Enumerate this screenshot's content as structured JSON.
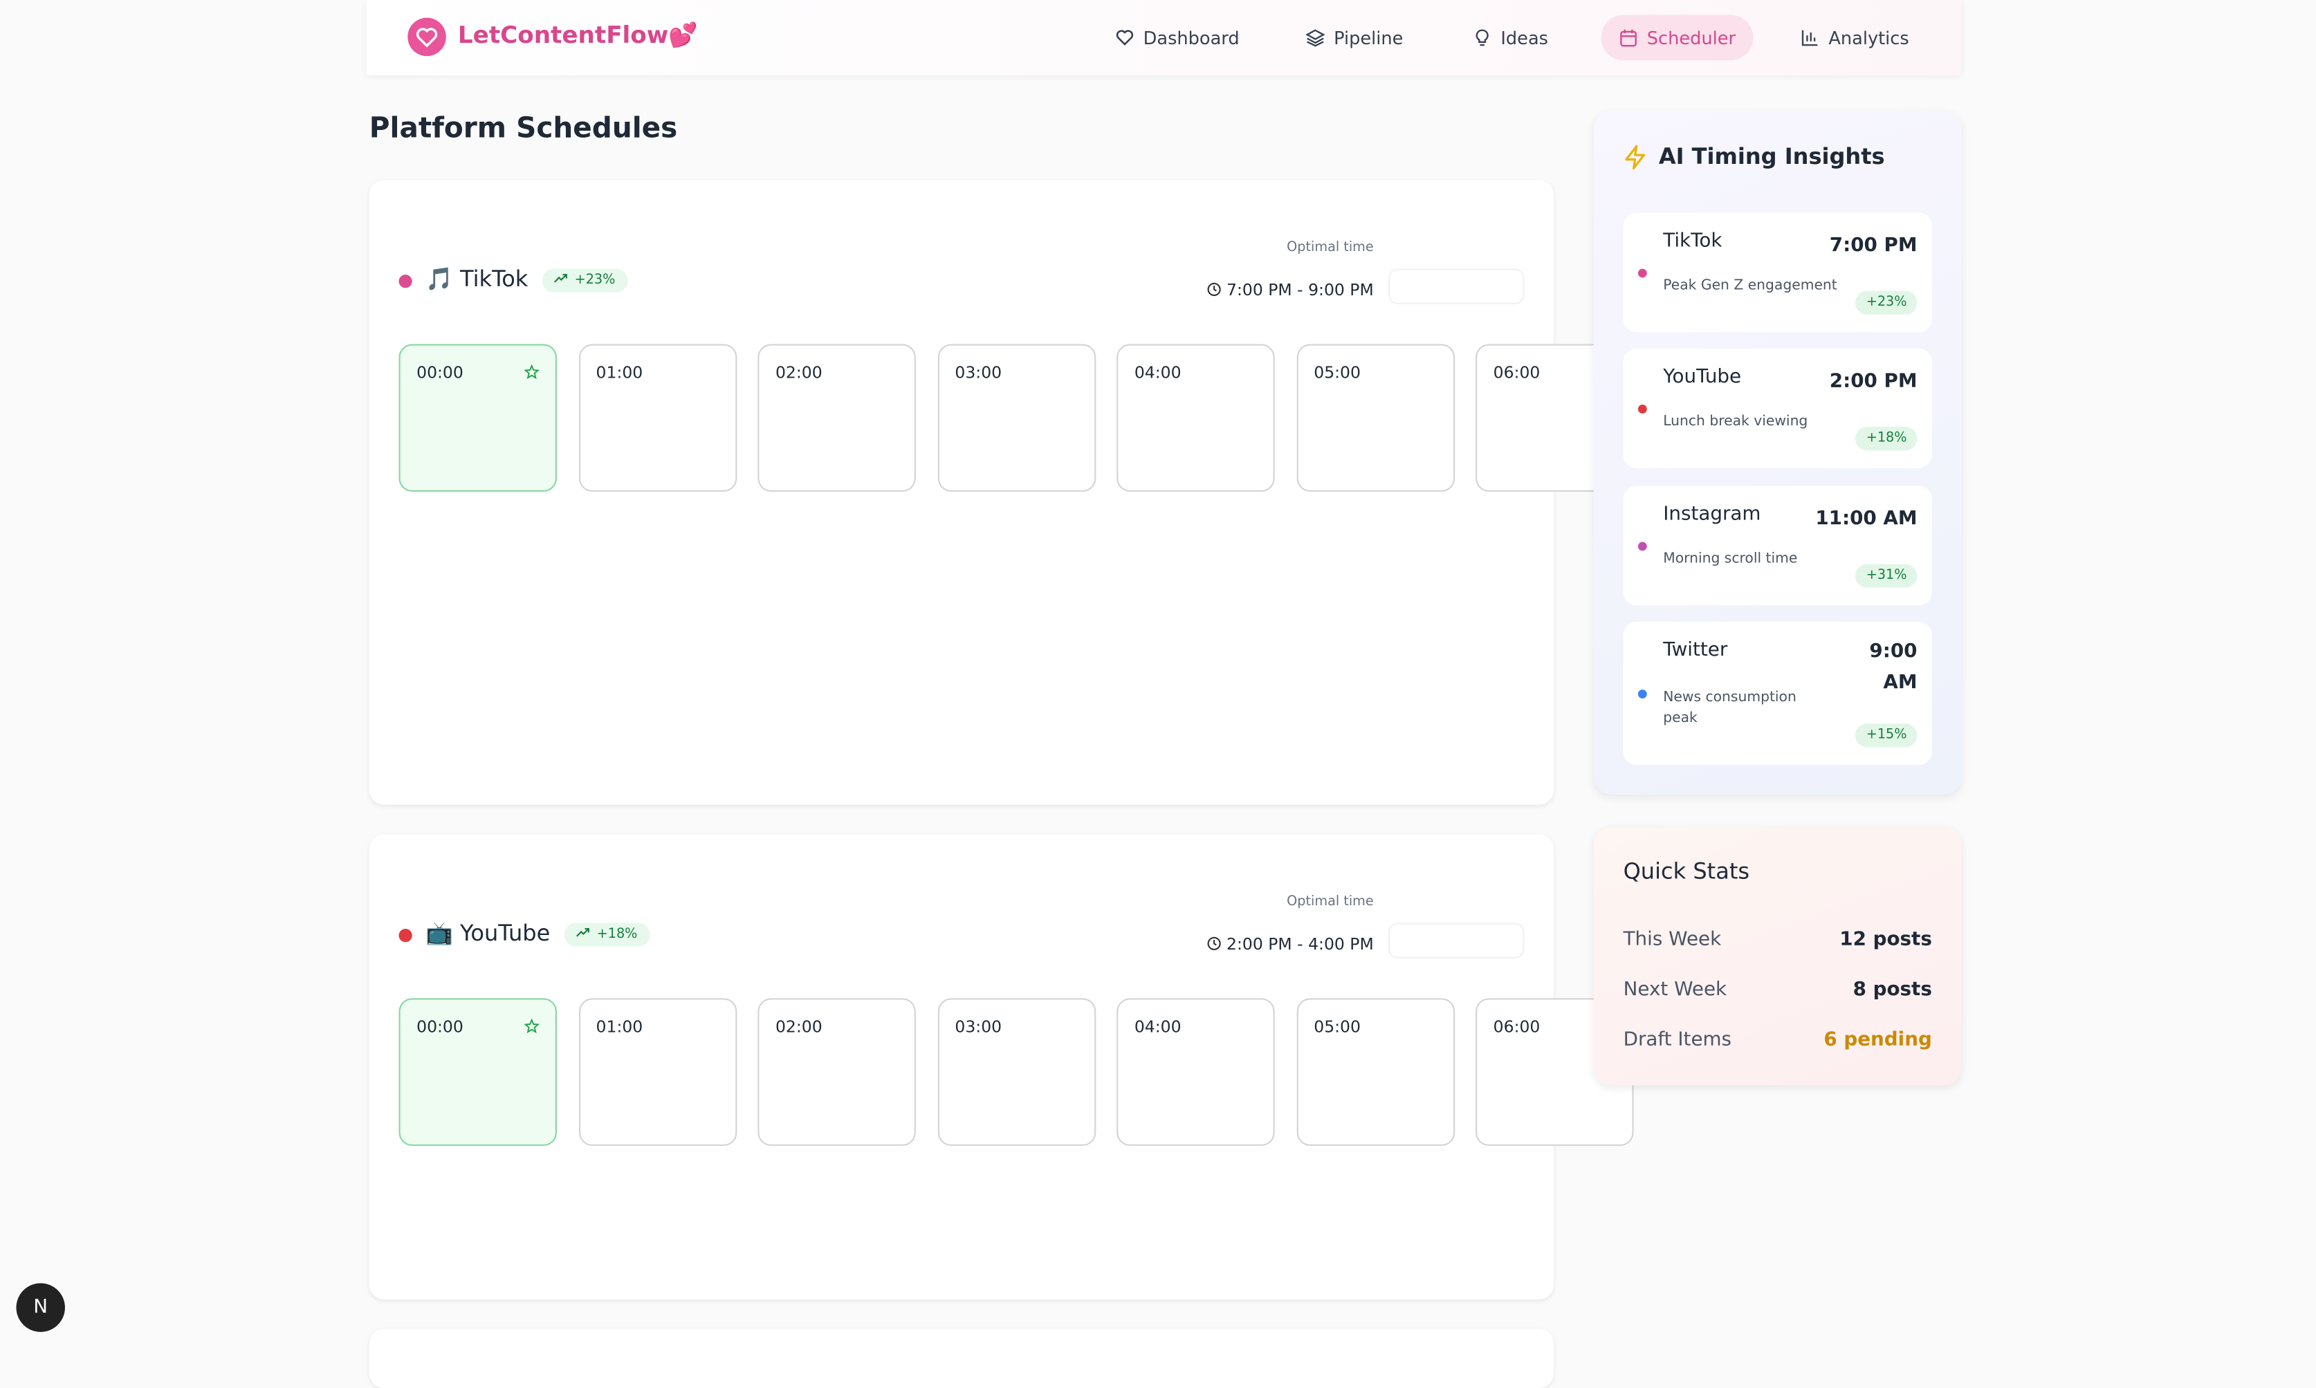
{
  "header": {
    "brand": "LetContentFlow",
    "brand_emoji": "💕",
    "nav": [
      {
        "label": "Dashboard",
        "icon": "heart"
      },
      {
        "label": "Pipeline",
        "icon": "layers"
      },
      {
        "label": "Ideas",
        "icon": "bulb"
      },
      {
        "label": "Scheduler",
        "icon": "calendar",
        "active": true
      },
      {
        "label": "Analytics",
        "icon": "chart"
      }
    ]
  },
  "schedules": {
    "title": "Platform Schedules",
    "platforms": [
      {
        "name": "TikTok",
        "emoji": "🎵",
        "color": "#dc4b92",
        "growth": "+23%",
        "optimal_label": "Optimal time",
        "optimal_range": "7:00 PM - 9:00 PM",
        "slots": [
          "00:00",
          "01:00",
          "02:00",
          "03:00",
          "04:00",
          "05:00",
          "06:00"
        ]
      },
      {
        "name": "YouTube",
        "emoji": "📺",
        "color": "#e03a3e",
        "growth": "+18%",
        "optimal_label": "Optimal time",
        "optimal_range": "2:00 PM - 4:00 PM",
        "slots": [
          "00:00",
          "01:00",
          "02:00",
          "03:00",
          "04:00",
          "05:00",
          "06:00"
        ]
      }
    ]
  },
  "insights": {
    "title": "AI Timing Insights",
    "items": [
      {
        "platform": "TikTok",
        "time": "7:00 PM",
        "note": "Peak Gen Z engagement",
        "lift": "+23%",
        "color": "#dc4b92"
      },
      {
        "platform": "YouTube",
        "time": "2:00 PM",
        "note": "Lunch break viewing",
        "lift": "+18%",
        "color": "#e03a3e"
      },
      {
        "platform": "Instagram",
        "time": "11:00 AM",
        "note": "Morning scroll time",
        "lift": "+31%",
        "color": "#c44fb2"
      },
      {
        "platform": "Twitter",
        "time": "9:00 AM",
        "note": "News consumption peak",
        "lift": "+15%",
        "color": "#3b82f6"
      }
    ]
  },
  "quick_stats": {
    "title": "Quick Stats",
    "rows": [
      {
        "label": "This Week",
        "value": "12 posts"
      },
      {
        "label": "Next Week",
        "value": "8 posts"
      },
      {
        "label": "Draft Items",
        "value": "6 pending",
        "color": "#ca8a04"
      }
    ]
  }
}
